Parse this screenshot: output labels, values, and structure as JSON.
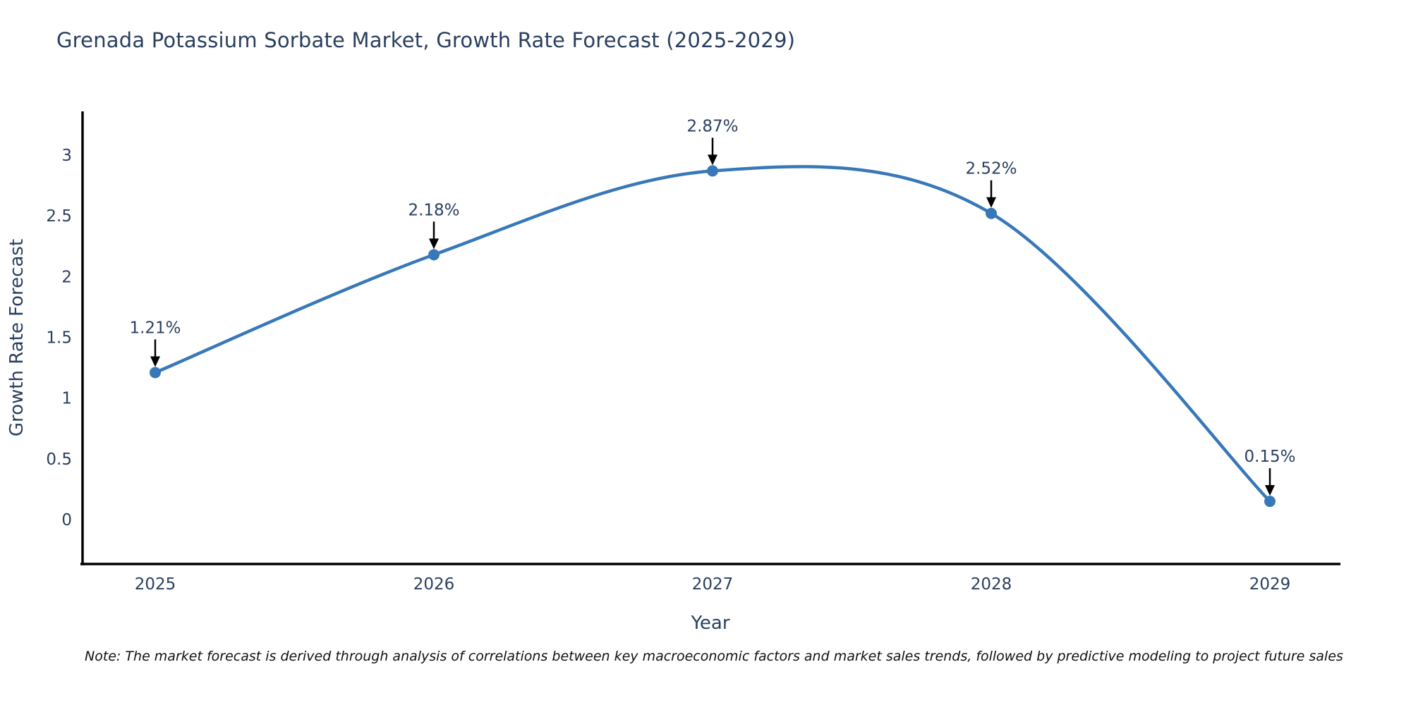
{
  "colors": {
    "line": "#3878b8",
    "marker": "#3878b8",
    "axis_line": "#000000",
    "text": "#2a3f5f",
    "annotation_arrow": "#000000",
    "note_text": "#101010",
    "background": "#ffffff"
  },
  "chart_data": {
    "type": "line",
    "title": "Grenada Potassium Sorbate Market, Growth Rate Forecast (2025-2029)",
    "x": [
      "2025",
      "2026",
      "2027",
      "2028",
      "2029"
    ],
    "values": [
      1.21,
      2.18,
      2.87,
      2.52,
      0.15
    ],
    "point_labels": [
      "1.21%",
      "2.18%",
      "2.87%",
      "2.52%",
      "0.15%"
    ],
    "xlabel": "Year",
    "ylabel": "Growth Rate Forecast",
    "yticks": [
      0,
      0.5,
      1,
      1.5,
      2,
      2.5,
      3
    ],
    "ylim": [
      -0.37,
      3.36
    ],
    "xlim": [
      2024.73,
      2029.27
    ],
    "line_shape": "spline",
    "grid": false,
    "legend": "none",
    "markers": true,
    "annotations_arrow": true,
    "note": "Note: The market forecast is derived through analysis of correlations between key macroeconomic factors and market sales trends, followed by predictive modeling to project future sales"
  }
}
